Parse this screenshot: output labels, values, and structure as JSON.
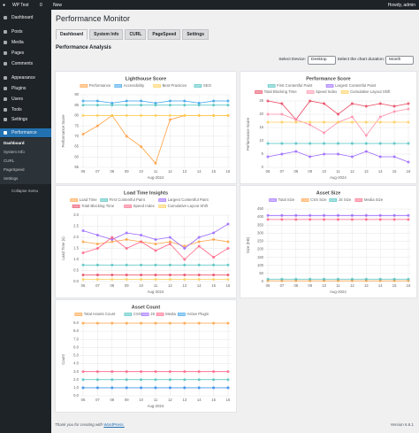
{
  "admin_bar": {
    "site": "WP Test",
    "comments": "0",
    "new": "New",
    "greeting": "Howdy, admin"
  },
  "sidebar": {
    "items": [
      "Dashboard",
      "Posts",
      "Media",
      "Pages",
      "Comments",
      "Appearance",
      "Plugins",
      "Users",
      "Tools",
      "Settings",
      "Performance"
    ],
    "submenu": [
      "Dashboard",
      "System Info",
      "CURL",
      "PageSpeed",
      "Settings"
    ],
    "collapse": "Collapse menu"
  },
  "page": {
    "title": "Performance Monitor",
    "tabs": [
      "Dashboard",
      "System Info",
      "CURL",
      "PageSpeed",
      "Settings"
    ],
    "section": "Performance Analysis",
    "device_label": "Select Device:",
    "device": "Desktop",
    "duration_label": "Select the chart duration:",
    "duration": "Month"
  },
  "footer": {
    "thanks": "Thank you for creating with",
    "link": "WordPress.",
    "version": "Version 6.6.1"
  },
  "chart_data": [
    {
      "type": "line",
      "title": "Lighthouse Score",
      "x_label": "Aug-2024",
      "y_label": "Performance Score",
      "categories": [
        "06",
        "07",
        "08",
        "09",
        "10",
        "11",
        "12",
        "13",
        "14",
        "15",
        "16"
      ],
      "ylim": [
        55,
        90
      ],
      "yticks": [
        55,
        60,
        65,
        70,
        75,
        80,
        85,
        90
      ],
      "grid": true,
      "series": [
        {
          "name": "Performance",
          "color": "#ff9f40",
          "values": [
            71,
            75,
            80,
            70,
            65,
            57,
            78,
            80,
            80,
            80,
            80
          ]
        },
        {
          "name": "Accessibility",
          "color": "#36a2eb",
          "values": [
            87,
            87,
            86,
            87,
            87,
            86,
            87,
            87,
            86,
            87,
            87
          ]
        },
        {
          "name": "Best Practices",
          "color": "#ffcd56",
          "values": [
            80,
            80,
            80,
            80,
            80,
            80,
            80,
            80,
            80,
            80,
            80
          ]
        },
        {
          "name": "SEO",
          "color": "#4bc0c0",
          "values": [
            85,
            85,
            85,
            85,
            85,
            85,
            85,
            85,
            85,
            85,
            85
          ]
        }
      ]
    },
    {
      "type": "line",
      "title": "Performance Score",
      "x_label": "Aug-2024",
      "y_label": "Performance Score",
      "categories": [
        "06",
        "07",
        "08",
        "09",
        "10",
        "11",
        "12",
        "13",
        "14",
        "15",
        "16"
      ],
      "ylim": [
        0,
        25
      ],
      "yticks": [
        0,
        5,
        10,
        15,
        20,
        25
      ],
      "grid": true,
      "series": [
        {
          "name": "First Contentful Paint",
          "color": "#4bc0c0",
          "values": [
            9,
            9,
            9,
            9,
            9,
            9,
            9,
            9,
            9,
            9,
            9
          ]
        },
        {
          "name": "Largest Contentful Paint",
          "color": "#9966ff",
          "values": [
            4,
            5,
            6,
            4,
            5,
            5,
            4,
            6,
            4,
            4,
            2
          ]
        },
        {
          "name": "Total Blocking Time",
          "color": "#e8455f",
          "values": [
            25,
            24,
            18,
            25,
            24,
            20,
            24,
            23,
            24,
            23,
            24
          ]
        },
        {
          "name": "Speed Index",
          "color": "#ff8fab",
          "values": [
            20,
            20,
            18,
            16,
            13,
            17,
            19,
            12,
            19,
            21,
            22
          ]
        },
        {
          "name": "Cumulative Layout Shift",
          "color": "#ffcd56",
          "values": [
            17,
            17,
            17,
            17,
            17,
            17,
            17,
            17,
            17,
            17,
            17
          ]
        }
      ]
    },
    {
      "type": "line",
      "title": "Load Time Insights",
      "x_label": "Aug-2024",
      "y_label": "Load Time (s)",
      "categories": [
        "06",
        "07",
        "08",
        "09",
        "10",
        "11",
        "12",
        "13",
        "14",
        "15",
        "16"
      ],
      "ylim": [
        0,
        3
      ],
      "yticks": [
        {
          "value": 0,
          "label": "0.0"
        },
        0.5,
        {
          "value": 1,
          "label": "1.0"
        },
        1.5,
        {
          "value": 2,
          "label": "2.0"
        },
        2.5,
        {
          "value": 3,
          "label": "3.0"
        }
      ],
      "grid": true,
      "series": [
        {
          "name": "Load Time",
          "color": "#ff9f40",
          "values": [
            1.8,
            1.7,
            1.8,
            1.9,
            1.8,
            1.7,
            1.8,
            1.6,
            1.8,
            1.9,
            1.8
          ]
        },
        {
          "name": "First Contentful Paint",
          "color": "#4bc0c0",
          "values": [
            0.75,
            0.75,
            0.75,
            0.75,
            0.75,
            0.75,
            0.75,
            0.75,
            0.75,
            0.75,
            0.75
          ]
        },
        {
          "name": "Largest Contentful Paint",
          "color": "#9966ff",
          "values": [
            2.3,
            2.1,
            1.9,
            2.2,
            2.1,
            1.9,
            2.0,
            1.5,
            2.0,
            2.2,
            2.6
          ]
        },
        {
          "name": "Total Blocking Time",
          "color": "#e8455f",
          "values": [
            0.3,
            0.3,
            0.3,
            0.3,
            0.3,
            0.3,
            0.3,
            0.3,
            0.3,
            0.3,
            0.3
          ]
        },
        {
          "name": "Speed Index",
          "color": "#ff6384",
          "values": [
            1.3,
            1.5,
            2.0,
            1.5,
            1.8,
            1.4,
            1.7,
            1.0,
            1.6,
            1.1,
            1.5
          ]
        },
        {
          "name": "Cumulative Layout Shift",
          "color": "#ffcd56",
          "values": [
            0.1,
            0.1,
            0.1,
            0.1,
            0.1,
            0.1,
            0.1,
            0.1,
            0.1,
            0.1,
            0.1
          ]
        }
      ]
    },
    {
      "type": "line",
      "title": "Asset Size",
      "x_label": "Aug-2024",
      "y_label": "Size (KB)",
      "categories": [
        "06",
        "07",
        "08",
        "09",
        "10",
        "11",
        "12",
        "13",
        "14",
        "15",
        "16"
      ],
      "ylim": [
        0,
        450
      ],
      "yticks": [
        0,
        50,
        100,
        150,
        200,
        250,
        300,
        350,
        400,
        450
      ],
      "grid": true,
      "series": [
        {
          "name": "Total Size",
          "color": "#9966ff",
          "values": [
            410,
            410,
            410,
            410,
            410,
            410,
            410,
            410,
            410,
            410,
            410
          ]
        },
        {
          "name": "CSS Size",
          "color": "#ff9f40",
          "values": [
            5,
            5,
            5,
            5,
            5,
            5,
            5,
            5,
            5,
            5,
            5
          ]
        },
        {
          "name": "JS Size",
          "color": "#4bc0c0",
          "values": [
            15,
            15,
            15,
            15,
            15,
            15,
            15,
            15,
            15,
            15,
            15
          ]
        },
        {
          "name": "Media Size",
          "color": "#ff6384",
          "values": [
            385,
            385,
            385,
            385,
            385,
            385,
            385,
            385,
            385,
            385,
            385
          ]
        }
      ]
    },
    {
      "type": "line",
      "title": "Asset Count",
      "x_label": "Aug-2024",
      "y_label": "Count",
      "categories": [
        "06",
        "07",
        "08",
        "09",
        "10",
        "11",
        "12",
        "13",
        "14",
        "15",
        "16"
      ],
      "ylim": [
        0,
        9
      ],
      "yticks": [
        {
          "value": 0,
          "label": "0.0"
        },
        {
          "value": 1,
          "label": "1.0"
        },
        {
          "value": 2,
          "label": "2.0"
        },
        {
          "value": 3,
          "label": "3.0"
        },
        {
          "value": 4,
          "label": "4.0"
        },
        {
          "value": 5,
          "label": "5.0"
        },
        {
          "value": 6,
          "label": "6.0"
        },
        {
          "value": 7,
          "label": "7.0"
        },
        {
          "value": 8,
          "label": "8.0"
        },
        {
          "value": 9,
          "label": "9.0"
        }
      ],
      "grid": true,
      "series": [
        {
          "name": "Total Assets Count",
          "color": "#ff9f40",
          "values": [
            9,
            9,
            9,
            9,
            9,
            9,
            9,
            9,
            9,
            9,
            9
          ]
        },
        {
          "name": "CSS",
          "color": "#4bc0c0",
          "values": [
            2,
            2,
            2,
            2,
            2,
            2,
            2,
            2,
            2,
            2,
            2
          ]
        },
        {
          "name": "JS",
          "color": "#9966ff",
          "values": [
            1,
            1,
            1,
            1,
            1,
            1,
            1,
            1,
            1,
            1,
            1
          ]
        },
        {
          "name": "Media",
          "color": "#ff6384",
          "values": [
            3,
            3,
            3,
            3,
            3,
            3,
            3,
            3,
            3,
            3,
            3
          ]
        },
        {
          "name": "Active Plugin",
          "color": "#36a2eb",
          "values": [
            1,
            1,
            1,
            1,
            1,
            1,
            1,
            1,
            1,
            1,
            1
          ]
        }
      ]
    }
  ]
}
